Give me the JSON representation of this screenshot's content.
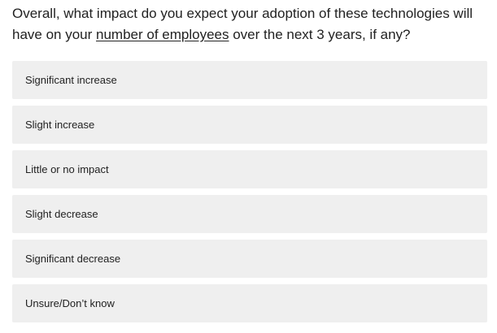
{
  "question": {
    "text_before": "Overall, what impact do you expect your adoption of these technologies will have on your ",
    "text_underlined": "number of employees",
    "text_after": " over the next 3 years, if any?"
  },
  "options": [
    {
      "label": "Significant increase"
    },
    {
      "label": "Slight increase"
    },
    {
      "label": "Little or no impact"
    },
    {
      "label": "Slight decrease"
    },
    {
      "label": "Significant decrease"
    },
    {
      "label": "Unsure/Don’t know"
    }
  ]
}
